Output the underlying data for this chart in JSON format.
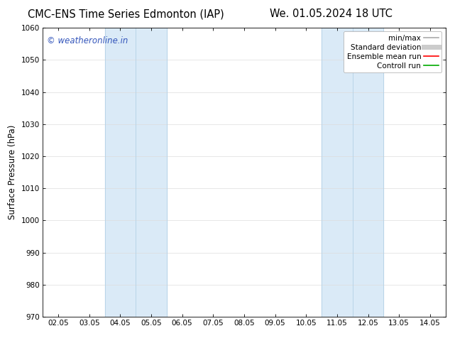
{
  "title_left": "CMC-ENS Time Series Edmonton (IAP)",
  "title_right": "We. 01.05.2024 18 UTC",
  "ylabel": "Surface Pressure (hPa)",
  "ylim": [
    970,
    1060
  ],
  "yticks": [
    970,
    980,
    990,
    1000,
    1010,
    1020,
    1030,
    1040,
    1050,
    1060
  ],
  "xtick_labels": [
    "02.05",
    "03.05",
    "04.05",
    "05.05",
    "06.05",
    "07.05",
    "08.05",
    "09.05",
    "10.05",
    "11.05",
    "12.05",
    "13.05",
    "14.05"
  ],
  "xtick_positions": [
    0,
    1,
    2,
    3,
    4,
    5,
    6,
    7,
    8,
    9,
    10,
    11,
    12
  ],
  "xlim": [
    -0.5,
    12.5
  ],
  "shaded_bands": [
    {
      "x_start": 1.5,
      "x_end": 3.5,
      "color": "#daeaf7"
    },
    {
      "x_start": 8.5,
      "x_end": 10.5,
      "color": "#daeaf7"
    }
  ],
  "band_lines": [
    1.5,
    2.5,
    3.5,
    8.5,
    9.5,
    10.5
  ],
  "band_line_color": "#b8d4e8",
  "watermark_text": "© weatheronline.in",
  "watermark_color": "#3355bb",
  "legend_entries": [
    {
      "label": "min/max",
      "color": "#aaaaaa",
      "linewidth": 1.2
    },
    {
      "label": "Standard deviation",
      "color": "#cccccc",
      "linewidth": 5
    },
    {
      "label": "Ensemble mean run",
      "color": "#ff0000",
      "linewidth": 1.2
    },
    {
      "label": "Controll run",
      "color": "#00aa00",
      "linewidth": 1.2
    }
  ],
  "background_color": "#ffffff",
  "grid_color": "#dddddd",
  "title_fontsize": 10.5,
  "ylabel_fontsize": 8.5,
  "tick_fontsize": 7.5,
  "legend_fontsize": 7.5,
  "watermark_fontsize": 8.5
}
